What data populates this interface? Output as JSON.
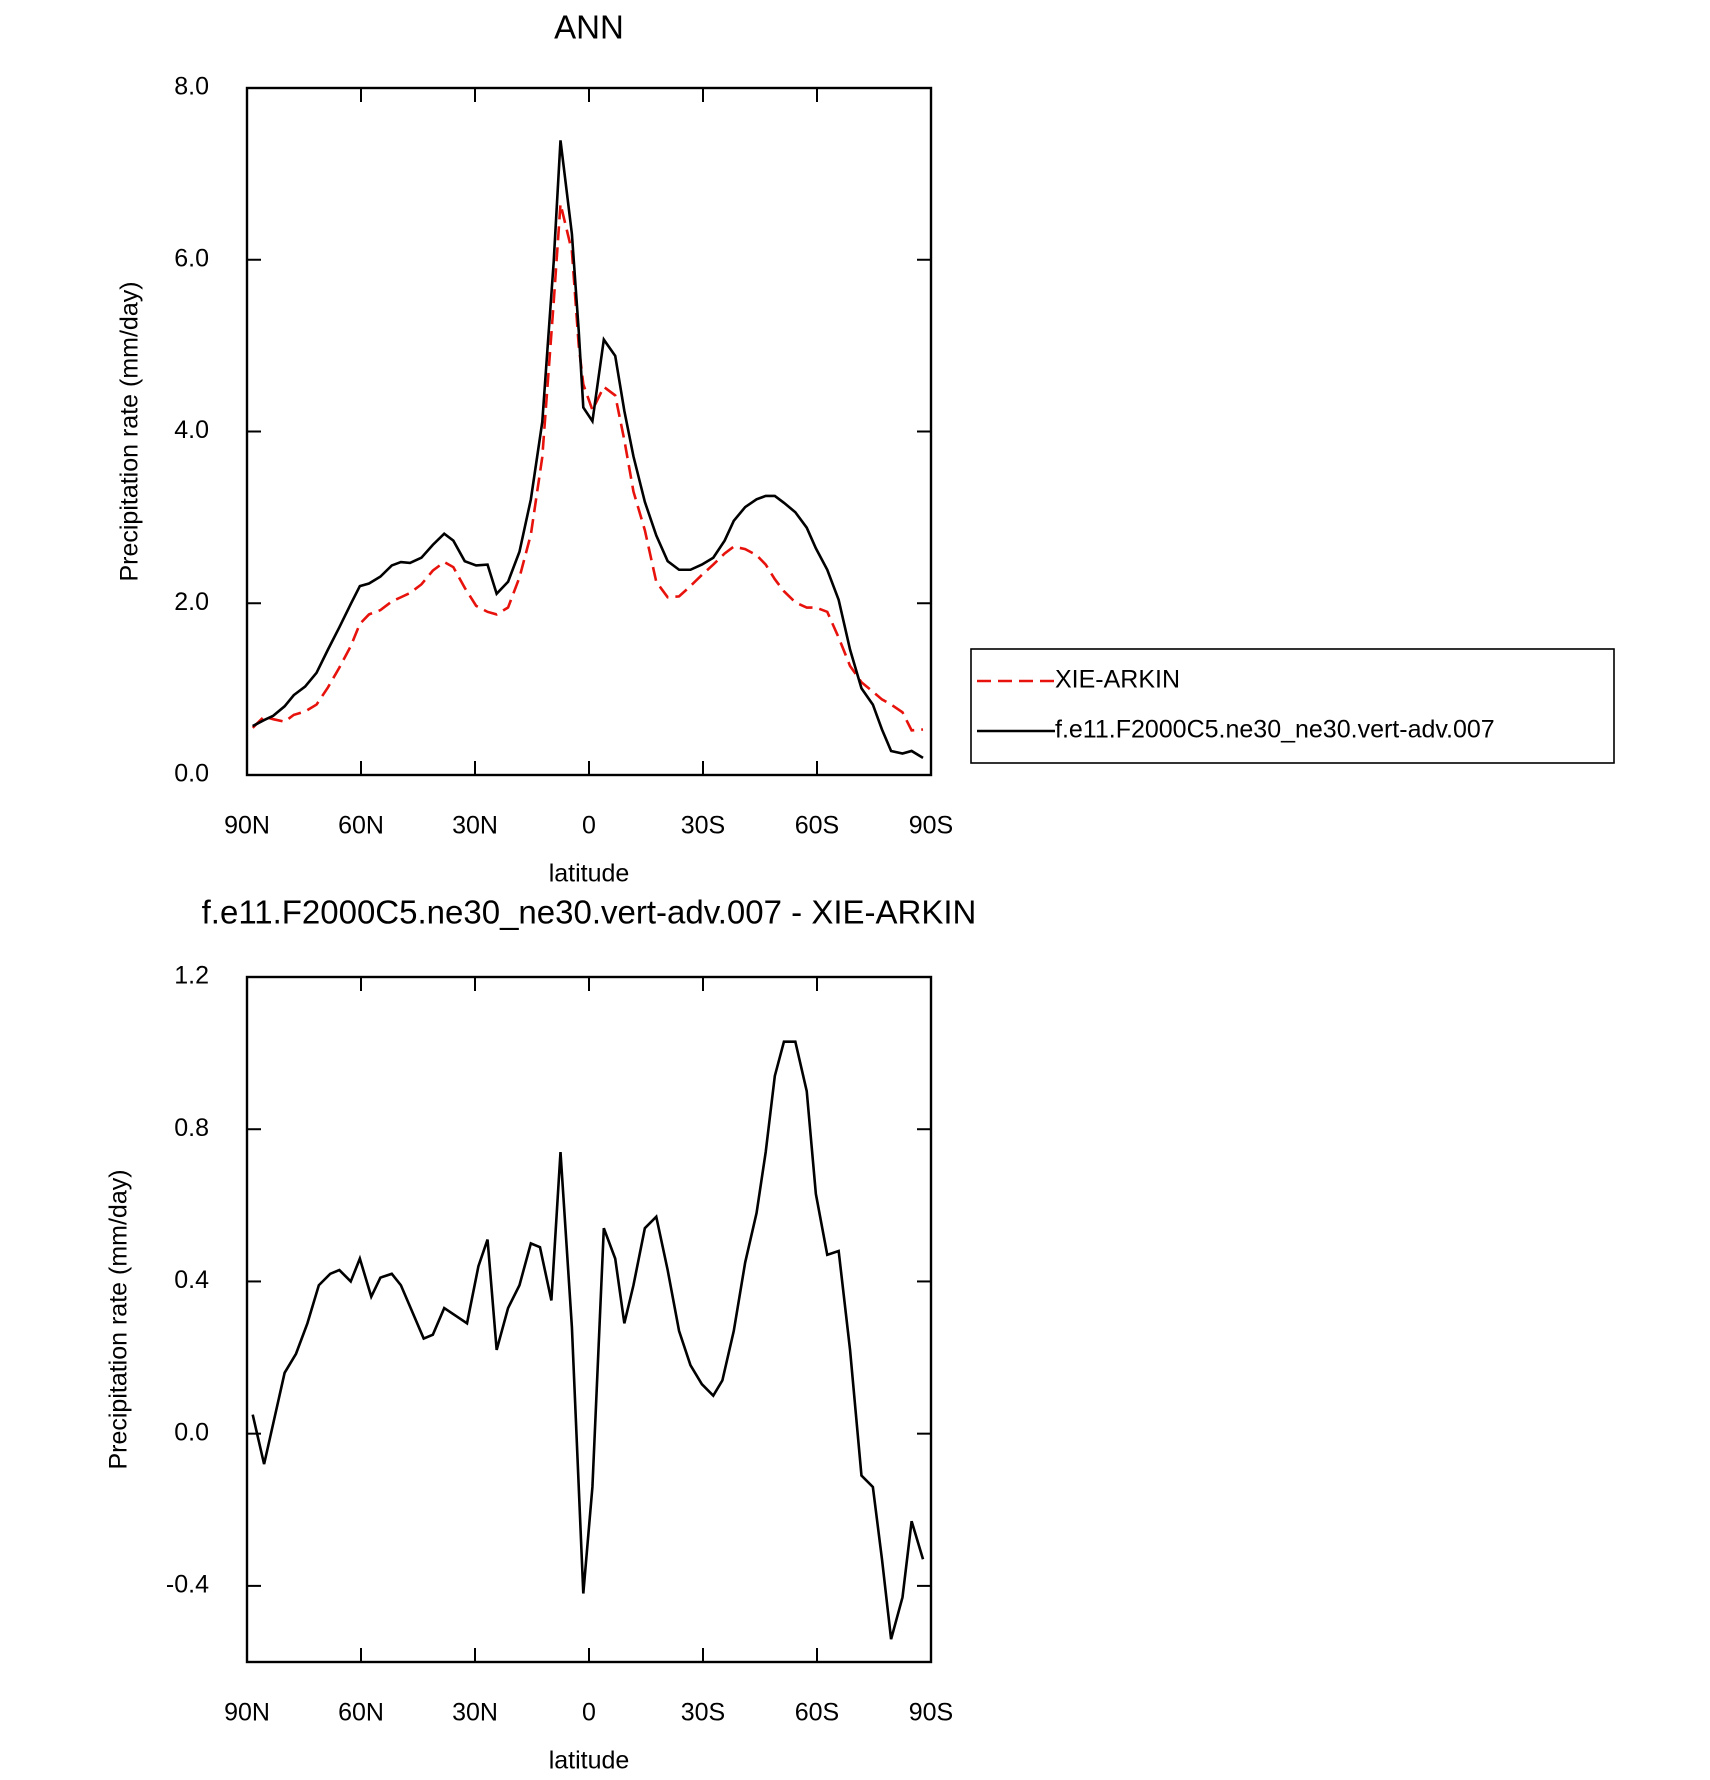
{
  "chart_data": [
    {
      "type": "line",
      "title": "ANN",
      "x_label": "latitude",
      "y_label": "Precipitation rate (mm/day)",
      "xlim": [
        90,
        -90
      ],
      "xticks": [
        {
          "value": 90,
          "label": "90N"
        },
        {
          "value": 60,
          "label": "60N"
        },
        {
          "value": 30,
          "label": "30N"
        },
        0,
        {
          "value": -30,
          "label": "30S"
        },
        {
          "value": -60,
          "label": "60S"
        },
        {
          "value": -90,
          "label": "90S"
        }
      ],
      "ylim": [
        0,
        8
      ],
      "yticks": [
        {
          "value": 0,
          "label": "0.0"
        },
        {
          "value": 2,
          "label": "2.0"
        },
        {
          "value": 4,
          "label": "4.0"
        },
        {
          "value": 6,
          "label": "6.0"
        },
        {
          "value": 8,
          "label": "8.0"
        }
      ],
      "legend": "right",
      "x": [
        88.5,
        85.5,
        83.1,
        80.1,
        77.7,
        74.7,
        71.7,
        68.7,
        65.7,
        62.7,
        60.3,
        57.9,
        54.9,
        51.9,
        49.5,
        47.1,
        44.1,
        41.1,
        38.1,
        35.7,
        32.7,
        29.7,
        26.7,
        24.3,
        21.3,
        18.3,
        15.3,
        12.3,
        9.3,
        7.5,
        4.5,
        2.7,
        1.5,
        -0.9,
        -3.9,
        -6.9,
        -9.3,
        -11.7,
        -14.7,
        -17.7,
        -20.7,
        -23.7,
        -26.7,
        -29.7,
        -32.7,
        -35.7,
        -38.1,
        -41.1,
        -44.1,
        -46.5,
        -48.9,
        -51.3,
        -54.3,
        -57.3,
        -59.7,
        -62.7,
        -65.7,
        -68.7,
        -71.7,
        -74.7,
        -77.1,
        -79.5,
        -82.5,
        -84.9,
        -87.9
      ],
      "series": [
        {
          "name": "XIE-ARKIN",
          "color": "#e8120c",
          "linestyle": "dashed",
          "values": [
            0.55,
            0.68,
            0.65,
            0.62,
            0.7,
            0.74,
            0.82,
            1.02,
            1.25,
            1.5,
            1.76,
            1.87,
            1.92,
            2.02,
            2.07,
            2.12,
            2.22,
            2.38,
            2.48,
            2.42,
            2.18,
            1.97,
            1.9,
            1.87,
            1.95,
            2.3,
            2.8,
            3.7,
            5.5,
            6.65,
            6.1,
            5.0,
            4.55,
            4.25,
            4.52,
            4.42,
            3.9,
            3.3,
            2.85,
            2.25,
            2.07,
            2.08,
            2.2,
            2.33,
            2.45,
            2.58,
            2.66,
            2.63,
            2.56,
            2.45,
            2.28,
            2.14,
            2.01,
            1.95,
            1.95,
            1.9,
            1.6,
            1.27,
            1.08,
            0.97,
            0.88,
            0.82,
            0.73,
            0.52,
            0.53
          ]
        },
        {
          "name": "f.e11.F2000C5.ne30_ne30.vert-adv.007",
          "color": "#000000",
          "linestyle": "solid",
          "values": [
            0.57,
            0.64,
            0.69,
            0.8,
            0.93,
            1.03,
            1.19,
            1.46,
            1.72,
            1.99,
            2.2,
            2.23,
            2.31,
            2.44,
            2.48,
            2.47,
            2.53,
            2.68,
            2.81,
            2.73,
            2.49,
            2.44,
            2.45,
            2.11,
            2.25,
            2.6,
            3.21,
            4.11,
            5.97,
            7.39,
            6.3,
            5.17,
            4.28,
            4.12,
            5.07,
            4.88,
            4.24,
            3.71,
            3.18,
            2.79,
            2.49,
            2.39,
            2.39,
            2.45,
            2.53,
            2.73,
            2.96,
            3.12,
            3.21,
            3.25,
            3.25,
            3.17,
            3.06,
            2.88,
            2.64,
            2.39,
            2.04,
            1.46,
            1.01,
            0.82,
            0.53,
            0.28,
            0.25,
            0.28,
            0.2
          ]
        }
      ]
    },
    {
      "type": "line",
      "title": "f.e11.F2000C5.ne30_ne30.vert-adv.007 - XIE-ARKIN",
      "x_label": "latitude",
      "y_label": "Precipitation rate (mm/day)",
      "xlim": [
        90,
        -90
      ],
      "xticks": [
        {
          "value": 90,
          "label": "90N"
        },
        {
          "value": 60,
          "label": "60N"
        },
        {
          "value": 30,
          "label": "30N"
        },
        0,
        {
          "value": -30,
          "label": "30S"
        },
        {
          "value": -60,
          "label": "60S"
        },
        {
          "value": -90,
          "label": "90S"
        }
      ],
      "ylim": [
        -0.6,
        1.2
      ],
      "yticks": [
        -0.4,
        {
          "value": 0,
          "label": "0.0"
        },
        0.4,
        0.8,
        1.2
      ],
      "x": [
        88.5,
        85.5,
        80.1,
        77.1,
        74.1,
        71.1,
        68.1,
        65.7,
        62.7,
        60.3,
        57.3,
        54.9,
        51.9,
        49.5,
        46.5,
        43.5,
        41.1,
        38.1,
        35.1,
        32.1,
        29.1,
        26.7,
        24.3,
        21.3,
        18.3,
        15.3,
        12.9,
        9.9,
        7.5,
        4.5,
        1.5,
        -0.9,
        -3.9,
        -6.9,
        -9.3,
        -11.7,
        -14.7,
        -17.7,
        -20.7,
        -23.7,
        -26.7,
        -29.7,
        -32.7,
        -35.1,
        -38.1,
        -41.1,
        -44.1,
        -46.5,
        -48.9,
        -51.3,
        -54.3,
        -57.3,
        -59.7,
        -62.7,
        -65.7,
        -68.7,
        -71.7,
        -74.7,
        -77.1,
        -79.5,
        -82.5,
        -84.9,
        -87.9
      ],
      "series": [
        {
          "color": "#000000",
          "linestyle": "solid",
          "values": [
            0.05,
            -0.08,
            0.16,
            0.21,
            0.29,
            0.39,
            0.42,
            0.43,
            0.4,
            0.46,
            0.36,
            0.41,
            0.42,
            0.39,
            0.32,
            0.25,
            0.26,
            0.33,
            0.31,
            0.29,
            0.44,
            0.51,
            0.22,
            0.33,
            0.39,
            0.5,
            0.49,
            0.35,
            0.74,
            0.28,
            -0.42,
            -0.14,
            0.54,
            0.46,
            0.29,
            0.39,
            0.54,
            0.57,
            0.43,
            0.27,
            0.18,
            0.13,
            0.1,
            0.14,
            0.27,
            0.45,
            0.58,
            0.74,
            0.94,
            1.03,
            1.03,
            0.9,
            0.63,
            0.47,
            0.48,
            0.22,
            -0.11,
            -0.14,
            -0.33,
            -0.54,
            -0.43,
            -0.23,
            -0.33
          ]
        }
      ]
    }
  ]
}
